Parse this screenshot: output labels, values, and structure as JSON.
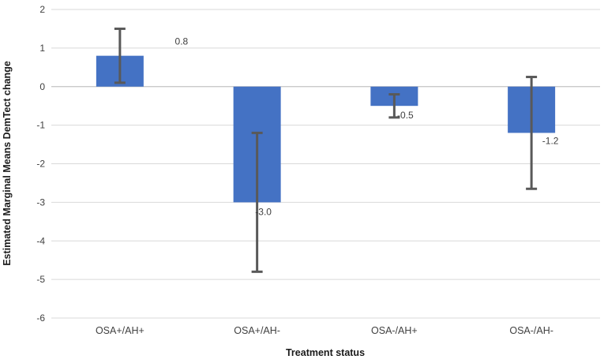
{
  "chart_data": {
    "type": "bar",
    "title": "",
    "categories": [
      "OSA+/AH+",
      "OSA+/AH-",
      "OSA-/AH+",
      "OSA-/AH-"
    ],
    "values": [
      0.8,
      -3.0,
      -0.5,
      -1.2
    ],
    "error": [
      0.7,
      1.8,
      0.3,
      1.45
    ],
    "data_labels": [
      "0.8",
      "-3.0",
      "-0.5",
      "-1.2"
    ],
    "xlabel": "Treatment status",
    "ylabel": "Estimated Marginal Means DemTect change",
    "ylim": [
      -6,
      2
    ],
    "yticks": [
      2,
      1,
      0,
      -1,
      -2,
      -3,
      -4,
      -5,
      -6
    ],
    "grid": true,
    "legend": "none",
    "bar_color": "#4472C4",
    "error_bar_color": "#595959",
    "gridline_color": "#D9D9D9",
    "zero_line_color": "#BFBFBF",
    "axis_text_color": "#404040"
  }
}
